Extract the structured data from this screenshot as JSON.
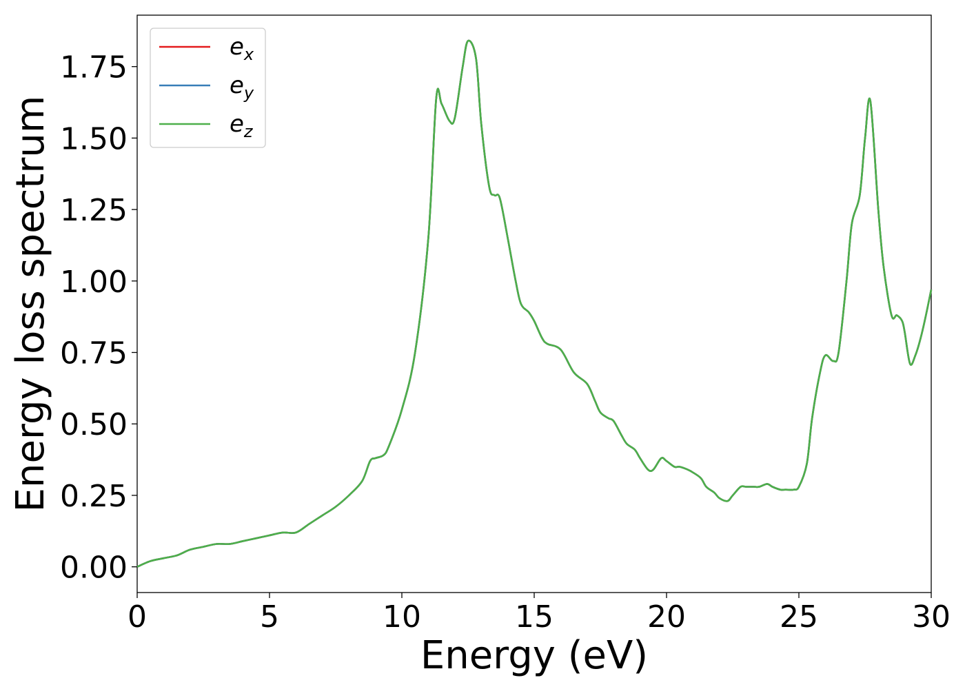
{
  "chart_data": {
    "type": "line",
    "title": "",
    "xlabel": "Energy (eV)",
    "ylabel": "Energy loss spectrum",
    "xlim": [
      0,
      30
    ],
    "ylim": [
      -0.09,
      1.93
    ],
    "xticks": [
      0,
      5,
      10,
      15,
      20,
      25,
      30
    ],
    "xtick_labels": [
      "0",
      "5",
      "10",
      "15",
      "20",
      "25",
      "30"
    ],
    "yticks": [
      0.0,
      0.25,
      0.5,
      0.75,
      1.0,
      1.25,
      1.5,
      1.75
    ],
    "ytick_labels": [
      "0.00",
      "0.25",
      "0.50",
      "0.75",
      "1.00",
      "1.25",
      "1.50",
      "1.75"
    ],
    "grid": false,
    "legend_position": "top-left",
    "series": [
      {
        "name": "e",
        "subscript": "x",
        "color": "#e41a1c"
      },
      {
        "name": "e",
        "subscript": "y",
        "color": "#377eb8"
      },
      {
        "name": "e",
        "subscript": "z",
        "color": "#4daf4a"
      }
    ],
    "x": [
      0,
      0.5,
      1.0,
      1.5,
      2.0,
      2.5,
      3.0,
      3.5,
      4.0,
      4.5,
      5.0,
      5.5,
      6.0,
      6.5,
      7.0,
      7.5,
      8.0,
      8.5,
      8.8,
      9.0,
      9.3,
      9.5,
      10.0,
      10.5,
      11.0,
      11.3,
      11.5,
      11.8,
      12.0,
      12.3,
      12.5,
      12.8,
      13.0,
      13.3,
      13.5,
      13.7,
      14.0,
      14.3,
      14.5,
      14.8,
      15.0,
      15.3,
      15.5,
      16.0,
      16.5,
      17.0,
      17.3,
      17.5,
      17.8,
      18.0,
      18.3,
      18.5,
      18.8,
      19.0,
      19.3,
      19.5,
      19.8,
      20.0,
      20.3,
      20.5,
      20.8,
      21.0,
      21.3,
      21.5,
      21.8,
      22.0,
      22.3,
      22.5,
      22.8,
      23.0,
      23.3,
      23.5,
      23.8,
      24.0,
      24.3,
      24.5,
      24.8,
      25.0,
      25.3,
      25.5,
      25.8,
      26.0,
      26.3,
      26.5,
      26.8,
      27.0,
      27.3,
      27.5,
      27.7,
      28.0,
      28.2,
      28.5,
      28.7,
      28.9,
      29.0,
      29.2,
      29.4,
      29.6,
      29.8,
      30.0
    ],
    "values": [
      0.0,
      0.02,
      0.03,
      0.04,
      0.06,
      0.07,
      0.08,
      0.08,
      0.09,
      0.1,
      0.11,
      0.12,
      0.12,
      0.15,
      0.18,
      0.21,
      0.25,
      0.3,
      0.37,
      0.38,
      0.39,
      0.42,
      0.55,
      0.75,
      1.15,
      1.64,
      1.62,
      1.56,
      1.57,
      1.75,
      1.84,
      1.78,
      1.55,
      1.33,
      1.3,
      1.29,
      1.15,
      1.0,
      0.92,
      0.89,
      0.86,
      0.8,
      0.78,
      0.76,
      0.68,
      0.64,
      0.58,
      0.54,
      0.52,
      0.51,
      0.46,
      0.43,
      0.41,
      0.38,
      0.34,
      0.34,
      0.38,
      0.37,
      0.35,
      0.35,
      0.34,
      0.33,
      0.31,
      0.28,
      0.26,
      0.24,
      0.23,
      0.25,
      0.28,
      0.28,
      0.28,
      0.28,
      0.29,
      0.28,
      0.27,
      0.27,
      0.27,
      0.28,
      0.36,
      0.52,
      0.68,
      0.74,
      0.72,
      0.75,
      1.0,
      1.2,
      1.3,
      1.5,
      1.63,
      1.25,
      1.05,
      0.88,
      0.88,
      0.86,
      0.82,
      0.71,
      0.74,
      0.8,
      0.88,
      0.97
    ]
  }
}
